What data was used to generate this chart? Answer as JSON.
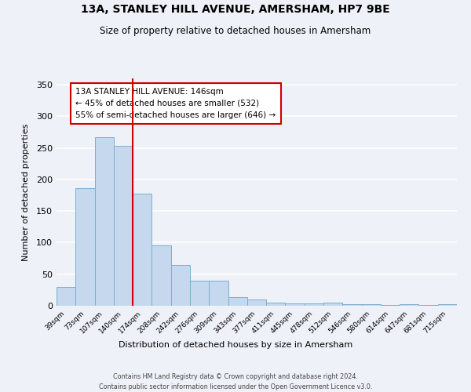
{
  "title": "13A, STANLEY HILL AVENUE, AMERSHAM, HP7 9BE",
  "subtitle": "Size of property relative to detached houses in Amersham",
  "xlabel": "Distribution of detached houses by size in Amersham",
  "ylabel": "Number of detached properties",
  "bin_labels": [
    "39sqm",
    "73sqm",
    "107sqm",
    "140sqm",
    "174sqm",
    "208sqm",
    "242sqm",
    "276sqm",
    "309sqm",
    "343sqm",
    "377sqm",
    "411sqm",
    "445sqm",
    "478sqm",
    "512sqm",
    "546sqm",
    "580sqm",
    "614sqm",
    "647sqm",
    "681sqm",
    "715sqm"
  ],
  "bar_values": [
    30,
    186,
    267,
    253,
    178,
    95,
    65,
    40,
    40,
    14,
    10,
    5,
    4,
    4,
    5,
    2,
    2,
    1,
    3,
    1,
    2
  ],
  "bar_color": "#c5d8ed",
  "bar_edge_color": "#7aafcf",
  "vline_color": "#cc0000",
  "vline_position": 3.5,
  "annotation_text": "13A STANLEY HILL AVENUE: 146sqm\n← 45% of detached houses are smaller (532)\n55% of semi-detached houses are larger (646) →",
  "annotation_box_color": "#ffffff",
  "annotation_box_edge_color": "#cc0000",
  "ylim": [
    0,
    360
  ],
  "yticks": [
    0,
    50,
    100,
    150,
    200,
    250,
    300,
    350
  ],
  "footer_text": "Contains HM Land Registry data © Crown copyright and database right 2024.\nContains public sector information licensed under the Open Government Licence v3.0.",
  "bg_color": "#eef2f8"
}
